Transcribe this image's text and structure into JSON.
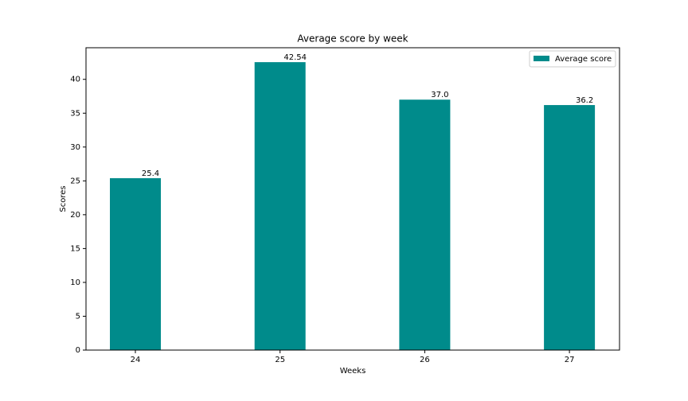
{
  "chart_data": {
    "type": "bar",
    "title": "Average score by week",
    "xlabel": "Weeks",
    "ylabel": "Scores",
    "categories": [
      "24",
      "25",
      "26",
      "27"
    ],
    "series": [
      {
        "name": "Average score",
        "color": "#008b8b",
        "values": [
          25.4,
          42.54,
          37.0,
          36.2
        ],
        "value_labels": [
          "25.4",
          "42.54",
          "37.0",
          "36.2"
        ]
      }
    ],
    "ylim": [
      0,
      44.67
    ],
    "yticks": [
      0,
      5,
      10,
      15,
      20,
      25,
      30,
      35,
      40
    ],
    "legend": "upper right"
  }
}
